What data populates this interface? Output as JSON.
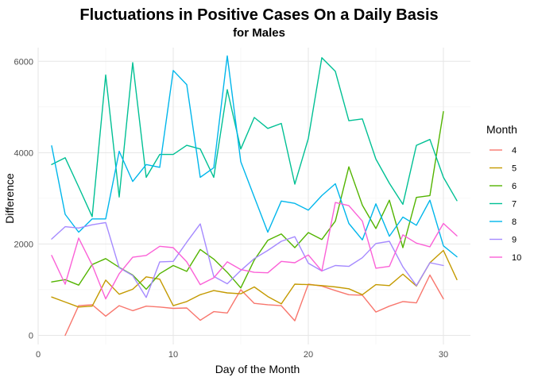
{
  "chart_data": {
    "type": "line",
    "title": "Fluctuations in Positive Cases On a Daily Basis",
    "subtitle": "for Males",
    "xlabel": "Day of the Month",
    "ylabel": "Difference",
    "xlim": [
      0,
      32
    ],
    "ylim": [
      -200,
      6300
    ],
    "x_ticks": [
      0,
      10,
      20,
      30
    ],
    "y_ticks": [
      0,
      2000,
      4000,
      6000
    ],
    "grid": true,
    "legend": {
      "title": "Month",
      "placement": "right"
    },
    "series": [
      {
        "name": "4",
        "color": "#F8766D",
        "points": [
          [
            2,
            0
          ],
          [
            3,
            650
          ],
          [
            4,
            670
          ],
          [
            5,
            420
          ],
          [
            6,
            650
          ],
          [
            7,
            540
          ],
          [
            8,
            640
          ],
          [
            9,
            620
          ],
          [
            10,
            590
          ],
          [
            11,
            600
          ],
          [
            12,
            330
          ],
          [
            13,
            520
          ],
          [
            14,
            490
          ],
          [
            15,
            1000
          ],
          [
            16,
            700
          ],
          [
            17,
            670
          ],
          [
            18,
            650
          ],
          [
            19,
            320
          ],
          [
            20,
            1120
          ],
          [
            21,
            1080
          ],
          [
            22,
            980
          ],
          [
            23,
            890
          ],
          [
            24,
            880
          ],
          [
            25,
            510
          ],
          [
            26,
            640
          ],
          [
            27,
            740
          ],
          [
            28,
            710
          ],
          [
            29,
            1320
          ],
          [
            30,
            800
          ]
        ]
      },
      {
        "name": "5",
        "color": "#C49A00",
        "points": [
          [
            1,
            840
          ],
          [
            2,
            730
          ],
          [
            3,
            620
          ],
          [
            4,
            640
          ],
          [
            5,
            1210
          ],
          [
            6,
            900
          ],
          [
            7,
            1010
          ],
          [
            8,
            1280
          ],
          [
            9,
            1230
          ],
          [
            10,
            650
          ],
          [
            11,
            740
          ],
          [
            12,
            890
          ],
          [
            13,
            980
          ],
          [
            14,
            930
          ],
          [
            15,
            910
          ],
          [
            16,
            1060
          ],
          [
            17,
            850
          ],
          [
            18,
            690
          ],
          [
            19,
            1120
          ],
          [
            20,
            1110
          ],
          [
            21,
            1090
          ],
          [
            22,
            1060
          ],
          [
            23,
            1020
          ],
          [
            24,
            890
          ],
          [
            25,
            1110
          ],
          [
            26,
            1090
          ],
          [
            27,
            1340
          ],
          [
            28,
            1080
          ],
          [
            29,
            1590
          ],
          [
            30,
            1860
          ],
          [
            31,
            1220
          ]
        ]
      },
      {
        "name": "6",
        "color": "#53B400",
        "points": [
          [
            1,
            1170
          ],
          [
            2,
            1220
          ],
          [
            3,
            1100
          ],
          [
            4,
            1550
          ],
          [
            5,
            1680
          ],
          [
            6,
            1490
          ],
          [
            7,
            1320
          ],
          [
            8,
            1010
          ],
          [
            9,
            1350
          ],
          [
            10,
            1530
          ],
          [
            11,
            1400
          ],
          [
            12,
            1880
          ],
          [
            13,
            1670
          ],
          [
            14,
            1380
          ],
          [
            15,
            1040
          ],
          [
            16,
            1650
          ],
          [
            17,
            2080
          ],
          [
            18,
            2220
          ],
          [
            19,
            1920
          ],
          [
            20,
            2250
          ],
          [
            21,
            2100
          ],
          [
            22,
            2500
          ],
          [
            23,
            3690
          ],
          [
            24,
            2850
          ],
          [
            25,
            2340
          ],
          [
            26,
            2960
          ],
          [
            27,
            1920
          ],
          [
            28,
            3020
          ],
          [
            29,
            3060
          ],
          [
            30,
            4900
          ]
        ]
      },
      {
        "name": "7",
        "color": "#00C094",
        "points": [
          [
            1,
            3740
          ],
          [
            2,
            3890
          ],
          [
            3,
            3250
          ],
          [
            4,
            2600
          ],
          [
            5,
            5700
          ],
          [
            6,
            3030
          ],
          [
            7,
            5970
          ],
          [
            8,
            3460
          ],
          [
            9,
            3960
          ],
          [
            10,
            3960
          ],
          [
            11,
            4160
          ],
          [
            12,
            4080
          ],
          [
            13,
            3460
          ],
          [
            14,
            5380
          ],
          [
            15,
            4080
          ],
          [
            16,
            4770
          ],
          [
            17,
            4530
          ],
          [
            18,
            4640
          ],
          [
            19,
            3310
          ],
          [
            20,
            4310
          ],
          [
            21,
            6080
          ],
          [
            22,
            5780
          ],
          [
            23,
            4700
          ],
          [
            24,
            4740
          ],
          [
            25,
            3860
          ],
          [
            26,
            3330
          ],
          [
            27,
            2870
          ],
          [
            28,
            4160
          ],
          [
            29,
            4290
          ],
          [
            30,
            3460
          ],
          [
            31,
            2950
          ]
        ]
      },
      {
        "name": "8",
        "color": "#00B6EB",
        "points": [
          [
            1,
            4150
          ],
          [
            2,
            2650
          ],
          [
            3,
            2260
          ],
          [
            4,
            2550
          ],
          [
            5,
            2550
          ],
          [
            6,
            4030
          ],
          [
            7,
            3370
          ],
          [
            8,
            3740
          ],
          [
            9,
            3680
          ],
          [
            10,
            5800
          ],
          [
            11,
            5490
          ],
          [
            12,
            3460
          ],
          [
            13,
            3670
          ],
          [
            14,
            6120
          ],
          [
            15,
            3800
          ],
          [
            16,
            3030
          ],
          [
            17,
            2260
          ],
          [
            18,
            2940
          ],
          [
            19,
            2890
          ],
          [
            20,
            2740
          ],
          [
            21,
            3060
          ],
          [
            22,
            3320
          ],
          [
            23,
            2450
          ],
          [
            24,
            2090
          ],
          [
            25,
            2880
          ],
          [
            26,
            2170
          ],
          [
            27,
            2590
          ],
          [
            28,
            2410
          ],
          [
            29,
            2960
          ],
          [
            30,
            1960
          ],
          [
            31,
            1720
          ]
        ]
      },
      {
        "name": "9",
        "color": "#A58AFF",
        "points": [
          [
            1,
            2110
          ],
          [
            2,
            2380
          ],
          [
            3,
            2350
          ],
          [
            4,
            2420
          ],
          [
            5,
            2470
          ],
          [
            6,
            1480
          ],
          [
            7,
            1310
          ],
          [
            8,
            830
          ],
          [
            9,
            1610
          ],
          [
            10,
            1620
          ],
          [
            11,
            2040
          ],
          [
            12,
            2440
          ],
          [
            13,
            1290
          ],
          [
            14,
            1130
          ],
          [
            15,
            1420
          ],
          [
            16,
            1680
          ],
          [
            17,
            1860
          ],
          [
            18,
            2060
          ],
          [
            19,
            2160
          ],
          [
            20,
            1580
          ],
          [
            21,
            1410
          ],
          [
            22,
            1530
          ],
          [
            23,
            1510
          ],
          [
            24,
            1700
          ],
          [
            25,
            2010
          ],
          [
            26,
            2060
          ],
          [
            27,
            1500
          ],
          [
            28,
            1090
          ],
          [
            29,
            1590
          ],
          [
            30,
            1530
          ]
        ]
      },
      {
        "name": "10",
        "color": "#FB61D7",
        "points": [
          [
            1,
            1750
          ],
          [
            2,
            1120
          ],
          [
            3,
            2130
          ],
          [
            4,
            1540
          ],
          [
            5,
            800
          ],
          [
            6,
            1350
          ],
          [
            7,
            1710
          ],
          [
            8,
            1750
          ],
          [
            9,
            1950
          ],
          [
            10,
            1920
          ],
          [
            11,
            1610
          ],
          [
            12,
            1110
          ],
          [
            13,
            1260
          ],
          [
            14,
            1610
          ],
          [
            15,
            1440
          ],
          [
            16,
            1380
          ],
          [
            17,
            1370
          ],
          [
            18,
            1620
          ],
          [
            19,
            1590
          ],
          [
            20,
            1760
          ],
          [
            21,
            1410
          ],
          [
            22,
            2910
          ],
          [
            23,
            2840
          ],
          [
            24,
            2500
          ],
          [
            25,
            1470
          ],
          [
            26,
            1510
          ],
          [
            27,
            2200
          ],
          [
            28,
            2020
          ],
          [
            29,
            1940
          ],
          [
            30,
            2450
          ],
          [
            31,
            2180
          ]
        ]
      }
    ]
  }
}
